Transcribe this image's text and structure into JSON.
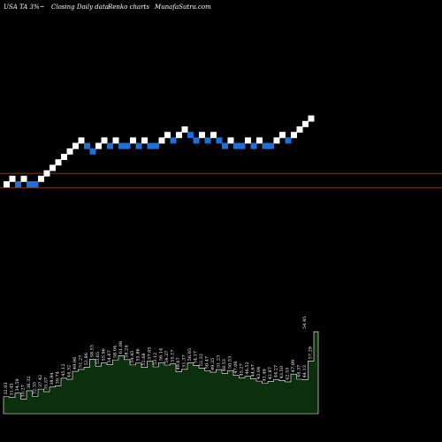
{
  "header": {
    "symbol": "USA TA 3%~",
    "chart_type": "Closing Daily data",
    "chart_style": "Renko charts",
    "brand": "MunafaSutra.com"
  },
  "colors": {
    "background": "#000000",
    "up_brick": "#ffffff",
    "down_brick": "#1e6fdc",
    "level_line": "#a0522d",
    "volume_fill": "#0c300c",
    "volume_stroke": "#ffffff"
  },
  "chart_data": [
    {
      "type": "renko",
      "grid": false,
      "bricks": [
        {
          "dir": "up",
          "level": 0
        },
        {
          "dir": "up",
          "level": 1
        },
        {
          "dir": "down",
          "level": 0
        },
        {
          "dir": "up",
          "level": 1
        },
        {
          "dir": "down",
          "level": 0
        },
        {
          "dir": "down",
          "level": 0
        },
        {
          "dir": "up",
          "level": 1
        },
        {
          "dir": "up",
          "level": 2
        },
        {
          "dir": "up",
          "level": 3
        },
        {
          "dir": "up",
          "level": 4
        },
        {
          "dir": "up",
          "level": 5
        },
        {
          "dir": "up",
          "level": 6
        },
        {
          "dir": "up",
          "level": 7
        },
        {
          "dir": "up",
          "level": 8
        },
        {
          "dir": "down",
          "level": 7
        },
        {
          "dir": "down",
          "level": 6
        },
        {
          "dir": "up",
          "level": 7
        },
        {
          "dir": "up",
          "level": 8
        },
        {
          "dir": "down",
          "level": 7
        },
        {
          "dir": "up",
          "level": 8
        },
        {
          "dir": "down",
          "level": 7
        },
        {
          "dir": "down",
          "level": 7
        },
        {
          "dir": "up",
          "level": 8
        },
        {
          "dir": "down",
          "level": 7
        },
        {
          "dir": "up",
          "level": 8
        },
        {
          "dir": "down",
          "level": 7
        },
        {
          "dir": "down",
          "level": 7
        },
        {
          "dir": "up",
          "level": 8
        },
        {
          "dir": "up",
          "level": 9
        },
        {
          "dir": "down",
          "level": 8
        },
        {
          "dir": "up",
          "level": 9
        },
        {
          "dir": "up",
          "level": 10
        },
        {
          "dir": "down",
          "level": 9
        },
        {
          "dir": "down",
          "level": 8
        },
        {
          "dir": "up",
          "level": 9
        },
        {
          "dir": "down",
          "level": 8
        },
        {
          "dir": "up",
          "level": 9
        },
        {
          "dir": "down",
          "level": 8
        },
        {
          "dir": "down",
          "level": 7
        },
        {
          "dir": "up",
          "level": 8
        },
        {
          "dir": "down",
          "level": 7
        },
        {
          "dir": "down",
          "level": 7
        },
        {
          "dir": "up",
          "level": 8
        },
        {
          "dir": "down",
          "level": 7
        },
        {
          "dir": "up",
          "level": 8
        },
        {
          "dir": "down",
          "level": 7
        },
        {
          "dir": "down",
          "level": 7
        },
        {
          "dir": "up",
          "level": 8
        },
        {
          "dir": "up",
          "level": 9
        },
        {
          "dir": "down",
          "level": 8
        },
        {
          "dir": "up",
          "level": 9
        },
        {
          "dir": "up",
          "level": 10
        },
        {
          "dir": "up",
          "level": 11
        },
        {
          "dir": "up",
          "level": 12
        }
      ],
      "levels": [
        2,
        -0.6
      ]
    },
    {
      "type": "bar",
      "volume_labels": [
        "32.03",
        "31.45",
        "34.59",
        "30.27",
        "36.32",
        "32.35",
        "37.42",
        "35.57",
        "38.84",
        "39.74",
        "45.12",
        "44.32",
        "49.96",
        "51.27",
        "52.86",
        "58.53",
        "53.65",
        "55.96",
        "54.67",
        "58.04",
        "61.08",
        "58.24",
        "54.45",
        "55.86",
        "52.68",
        "57.05",
        "53.12",
        "56.14",
        "54.37",
        "55.17",
        "49.67",
        "51.37",
        "56.05",
        "54.17",
        "52.32",
        "50.47",
        "49.35",
        "51.23",
        "48.53",
        "50.53",
        "47.06",
        "45.27",
        "46.52",
        "44.67",
        "43.04",
        "41.49",
        "42.87",
        "44.27",
        "43.50",
        "42.53",
        "47.99",
        "44.37",
        "44.13",
        "57.29"
      ],
      "volume_values": [
        32.03,
        31.45,
        34.59,
        30.27,
        36.32,
        32.35,
        37.42,
        35.57,
        38.84,
        39.74,
        45.12,
        44.32,
        49.96,
        51.27,
        52.86,
        58.53,
        53.65,
        55.96,
        54.67,
        58.04,
        61.08,
        58.24,
        54.45,
        55.86,
        52.68,
        57.05,
        53.12,
        56.14,
        54.37,
        55.17,
        49.67,
        51.37,
        56.05,
        54.17,
        52.32,
        50.47,
        49.35,
        51.23,
        48.53,
        50.53,
        47.06,
        45.27,
        46.52,
        44.67,
        43.04,
        41.49,
        42.87,
        44.27,
        43.5,
        42.53,
        47.99,
        44.37,
        44.13,
        57.29
      ],
      "last_label": "54.45"
    }
  ]
}
